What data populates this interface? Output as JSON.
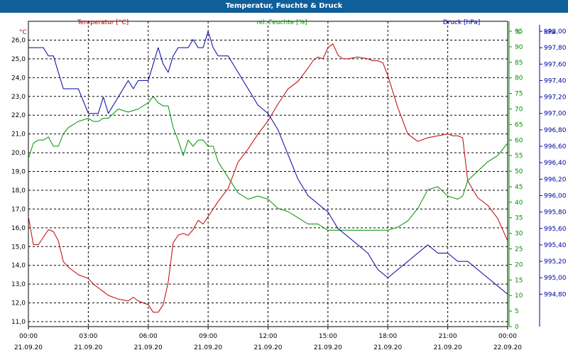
{
  "window": {
    "title": "Temperatur, Feuchte & Druck"
  },
  "chart_data": {
    "type": "line",
    "title": "Temperatur, Feuchte & Druck",
    "grid": true,
    "x_ticks": [
      {
        "time": "00:00",
        "date": "21.09.20"
      },
      {
        "time": "03:00",
        "date": "21.09.20"
      },
      {
        "time": "06:00",
        "date": "21.09.20"
      },
      {
        "time": "09:00",
        "date": "21.09.20"
      },
      {
        "time": "12:00",
        "date": "21.09.20"
      },
      {
        "time": "15:00",
        "date": "21.09.20"
      },
      {
        "time": "18:00",
        "date": "21.09.20"
      },
      {
        "time": "21:00",
        "date": "21.09.20"
      },
      {
        "time": "00:00",
        "date": "22.09.20"
      }
    ],
    "axes": {
      "left": {
        "unit": "°C",
        "ylim": [
          11.0,
          26.0
        ],
        "ticks": [
          "11,0",
          "12,0",
          "13,0",
          "14,0",
          "15,0",
          "16,0",
          "17,0",
          "18,0",
          "19,0",
          "20,0",
          "21,0",
          "22,0",
          "23,0",
          "24,0",
          "25,0",
          "26,0"
        ],
        "color": "#c00000"
      },
      "middle": {
        "unit": "%",
        "ylim": [
          0,
          95
        ],
        "ticks": [
          "0",
          "5",
          "10",
          "15",
          "20",
          "25",
          "30",
          "35",
          "40",
          "45",
          "50",
          "55",
          "60",
          "65",
          "70",
          "75",
          "80",
          "85",
          "90",
          "95"
        ],
        "color": "#009000"
      },
      "right": {
        "unit": "hPa",
        "ylim": [
          994.6,
          998.0
        ],
        "ticks": [
          "994,80",
          "995,00",
          "995,20",
          "995,40",
          "995,60",
          "995,80",
          "996,00",
          "996,20",
          "996,40",
          "996,60",
          "996,80",
          "997,00",
          "997,20",
          "997,40",
          "997,60",
          "997,80",
          "998,00"
        ],
        "color": "#0000a0"
      }
    },
    "series": [
      {
        "name": "Temperatur [°C]",
        "axis": "left",
        "color": "#c00000",
        "x": [
          0,
          0.25,
          0.5,
          0.75,
          1,
          1.25,
          1.5,
          1.75,
          2,
          2.5,
          3,
          3.25,
          3.5,
          3.75,
          4,
          4.5,
          5,
          5.25,
          5.5,
          5.75,
          6,
          6.25,
          6.5,
          6.75,
          7,
          7.25,
          7.5,
          7.75,
          8,
          8.25,
          8.5,
          8.75,
          9,
          9.25,
          9.5,
          10,
          10.5,
          11,
          11.5,
          12,
          12.5,
          13,
          13.5,
          14,
          14.25,
          14.5,
          14.75,
          15,
          15.25,
          15.5,
          15.75,
          16,
          16.5,
          17,
          17.25,
          17.5,
          17.75,
          18,
          18.5,
          19,
          19.5,
          20,
          20.5,
          21,
          21.25,
          21.5,
          21.75,
          22,
          22.5,
          23,
          23.5,
          24
        ],
        "values": [
          16.6,
          15.1,
          15.1,
          15.5,
          15.9,
          15.8,
          15.3,
          14.2,
          13.9,
          13.5,
          13.3,
          13.0,
          12.8,
          12.6,
          12.4,
          12.2,
          12.1,
          12.3,
          12.1,
          12.0,
          11.9,
          11.5,
          11.5,
          11.9,
          13.1,
          15.2,
          15.6,
          15.7,
          15.6,
          15.9,
          16.4,
          16.2,
          16.6,
          17.0,
          17.4,
          18.1,
          19.5,
          20.2,
          21.0,
          21.7,
          22.6,
          23.4,
          23.8,
          24.5,
          24.9,
          25.1,
          25.0,
          25.6,
          25.8,
          25.2,
          25.0,
          25.0,
          25.1,
          25.0,
          24.9,
          24.9,
          24.8,
          24.1,
          22.4,
          21.0,
          20.6,
          20.8,
          20.9,
          21.0,
          20.9,
          20.9,
          20.8,
          18.5,
          17.6,
          17.2,
          16.5,
          15.3
        ]
      },
      {
        "name": "rel. Feuchte [%]",
        "axis": "middle",
        "color": "#009000",
        "x": [
          0,
          0.25,
          0.5,
          0.75,
          1,
          1.25,
          1.5,
          1.75,
          2,
          2.5,
          3,
          3.25,
          3.5,
          3.75,
          4,
          4.5,
          5,
          5.5,
          6,
          6.25,
          6.5,
          6.75,
          7,
          7.25,
          7.5,
          7.75,
          8,
          8.25,
          8.5,
          8.75,
          9,
          9.25,
          9.5,
          10,
          10.5,
          11,
          11.5,
          12,
          12.5,
          13,
          13.5,
          14,
          14.5,
          15,
          15.5,
          16,
          16.5,
          17,
          17.5,
          18,
          18.5,
          19,
          19.5,
          20,
          20.5,
          21,
          21.5,
          21.75,
          22,
          22.5,
          23,
          23.5,
          24
        ],
        "values": [
          54,
          59,
          60,
          60,
          61,
          58,
          58,
          62,
          64,
          66,
          67,
          66,
          66,
          67,
          67,
          70,
          69,
          70,
          72,
          74,
          72,
          71,
          71,
          64,
          60,
          55,
          60,
          58,
          60,
          60,
          58,
          58,
          53,
          48,
          43,
          41,
          42,
          41,
          38,
          37,
          35,
          33,
          33,
          31,
          31,
          31,
          31,
          31,
          31,
          31,
          32,
          34,
          38,
          44,
          45,
          42,
          41,
          42,
          47,
          50,
          53,
          55,
          59
        ]
      },
      {
        "name": "Druck [hPa]",
        "axis": "right",
        "color": "#0000a0",
        "x": [
          0,
          0.25,
          0.5,
          0.75,
          1,
          1.25,
          1.5,
          1.75,
          2,
          2.5,
          3,
          3.25,
          3.5,
          3.75,
          4,
          4.25,
          4.5,
          5,
          5.25,
          5.5,
          5.75,
          6,
          6.25,
          6.5,
          6.75,
          7,
          7.25,
          7.5,
          7.75,
          8,
          8.25,
          8.5,
          8.75,
          9,
          9.25,
          9.5,
          10,
          10.5,
          11,
          11.5,
          12,
          12.5,
          13,
          13.5,
          14,
          14.5,
          15,
          15.5,
          16,
          16.5,
          17,
          17.5,
          18,
          18.5,
          19,
          19.5,
          20,
          20.5,
          21,
          21.5,
          22,
          22.5,
          23,
          23.5,
          24
        ],
        "values": [
          997.8,
          997.8,
          997.8,
          997.8,
          997.7,
          997.7,
          997.5,
          997.3,
          997.3,
          997.3,
          997.0,
          997.0,
          997.0,
          997.2,
          997.0,
          997.1,
          997.2,
          997.4,
          997.3,
          997.4,
          997.4,
          997.4,
          997.6,
          997.8,
          997.6,
          997.5,
          997.7,
          997.8,
          997.8,
          997.8,
          997.9,
          997.8,
          997.8,
          998.0,
          997.8,
          997.7,
          997.7,
          997.5,
          997.3,
          997.1,
          997.0,
          996.8,
          996.5,
          996.2,
          996.0,
          995.9,
          995.8,
          995.6,
          995.5,
          995.4,
          995.3,
          995.1,
          995.0,
          995.1,
          995.2,
          995.3,
          995.4,
          995.3,
          995.3,
          995.2,
          995.2,
          995.1,
          995.0,
          994.9,
          994.8
        ]
      }
    ]
  }
}
